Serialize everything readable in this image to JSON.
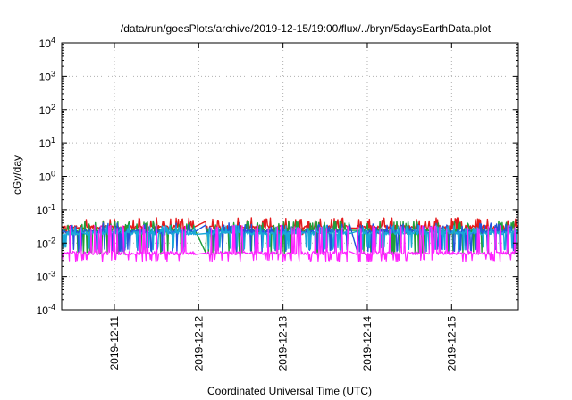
{
  "chart_data": {
    "type": "line",
    "title": "/data/run/goesPlots/archive/2019-12-15/19:00/flux/../bryn/5daysEarthData.plot",
    "xlabel": "Coordinated Universal Time (UTC)",
    "ylabel": "cGy/day",
    "yscale": "log",
    "grid": true,
    "xlim": [
      "2019-12-10T09:00",
      "2019-12-15T19:00"
    ],
    "ylim": [
      0.0001,
      10000
    ],
    "ytick_values": [
      0.0001,
      0.001,
      0.01,
      0.1,
      1,
      10,
      100,
      1000,
      10000
    ],
    "ytick_labels": [
      {
        "base": "10",
        "exp": "-4"
      },
      {
        "base": "10",
        "exp": "-3"
      },
      {
        "base": "10",
        "exp": "-2"
      },
      {
        "base": "10",
        "exp": "-1"
      },
      {
        "base": "10",
        "exp": "0"
      },
      {
        "base": "10",
        "exp": "1"
      },
      {
        "base": "10",
        "exp": "2"
      },
      {
        "base": "10",
        "exp": "3"
      },
      {
        "base": "10",
        "exp": "4"
      }
    ],
    "xticks": [
      {
        "value": "2019-12-11T00:00",
        "label": "2019-12-11"
      },
      {
        "value": "2019-12-12T00:00",
        "label": "2019-12-12"
      },
      {
        "value": "2019-12-13T00:00",
        "label": "2019-12-13"
      },
      {
        "value": "2019-12-14T00:00",
        "label": "2019-12-14"
      },
      {
        "value": "2019-12-15T00:00",
        "label": "2019-12-15"
      }
    ],
    "gaps": [
      [
        "2019-12-11T23:00",
        "2019-12-12T02:00"
      ],
      [
        "2019-12-13T19:00",
        "2019-12-13T21:00"
      ]
    ],
    "series": [
      {
        "color": "#e41a1c",
        "base": 0.03,
        "peak": 0.05,
        "low": 0.02
      },
      {
        "color": "#1f9e3a",
        "base": 0.024,
        "peak": 0.04,
        "low": 0.005
      },
      {
        "color": "#2255dd",
        "base": 0.022,
        "peak": 0.035,
        "low": 0.006
      },
      {
        "color": "#18a8d8",
        "base": 0.02,
        "peak": 0.03,
        "low": 0.007
      },
      {
        "color": "#ff22ff",
        "base": 0.005,
        "peak": 0.03,
        "low": 0.003
      }
    ]
  }
}
